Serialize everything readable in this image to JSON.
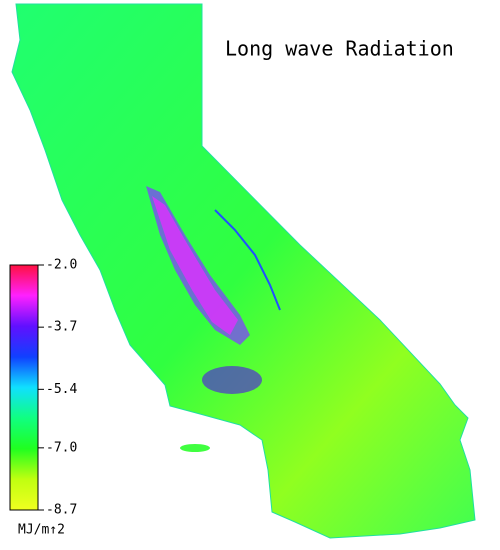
{
  "title": "Long wave Radiation",
  "colorbar": {
    "unit": "MJ/m↑2",
    "range": [
      -8.7,
      -2.0
    ],
    "ticks": [
      {
        "value": -2.0,
        "label": "-2.0"
      },
      {
        "value": -3.7,
        "label": "-3.7"
      },
      {
        "value": -5.4,
        "label": "-5.4"
      },
      {
        "value": -7.0,
        "label": "-7.0"
      },
      {
        "value": -8.7,
        "label": "-8.7"
      }
    ],
    "colors": [
      "#ff1040",
      "#ff20ff",
      "#6010ff",
      "#1040ff",
      "#10e0ff",
      "#10ff80",
      "#20ff20",
      "#c0ff10",
      "#f0ff20"
    ]
  }
}
